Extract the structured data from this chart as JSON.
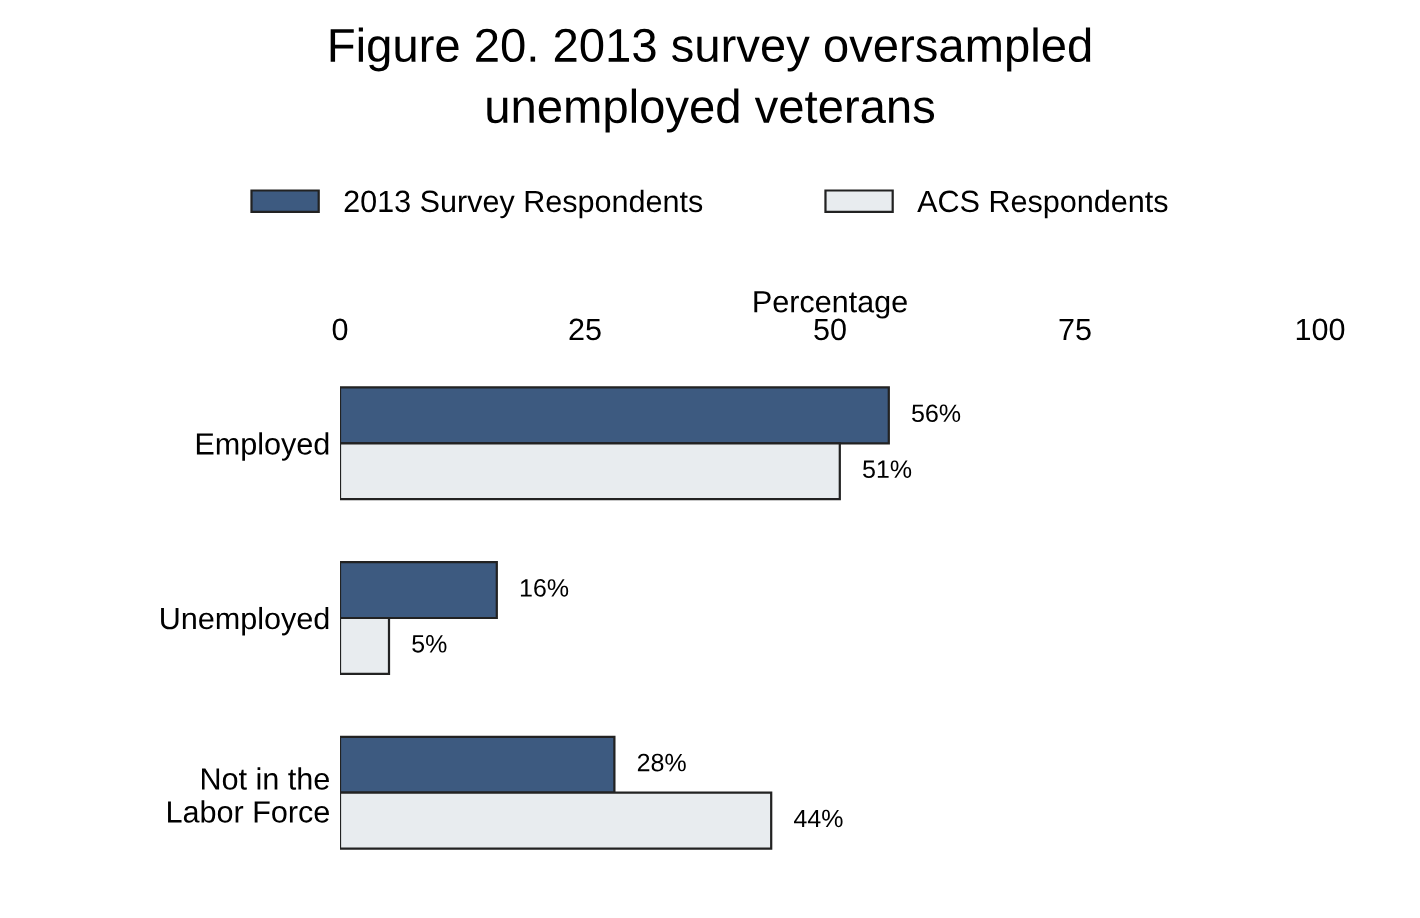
{
  "chart_data": {
    "type": "bar",
    "orientation": "horizontal",
    "title": "Figure 20. 2013 survey oversampled\nunemployed veterans",
    "xlabel": "Percentage",
    "categories": [
      "Employed",
      "Unemployed",
      "Not in the\nLabor Force"
    ],
    "series": [
      {
        "name": "2013 Survey Respondents",
        "color": "#3d5a80",
        "values": [
          56,
          16,
          28
        ],
        "value_labels": [
          "56%",
          "16%",
          "28%"
        ]
      },
      {
        "name": "ACS Respondents",
        "color": "#e8ecef",
        "values": [
          51,
          5,
          44
        ],
        "value_labels": [
          "51%",
          "5%",
          "44%"
        ]
      }
    ],
    "xlim": [
      0,
      100
    ],
    "xticks": [
      0,
      25,
      50,
      75,
      100
    ],
    "grid": false,
    "legend": "top"
  }
}
